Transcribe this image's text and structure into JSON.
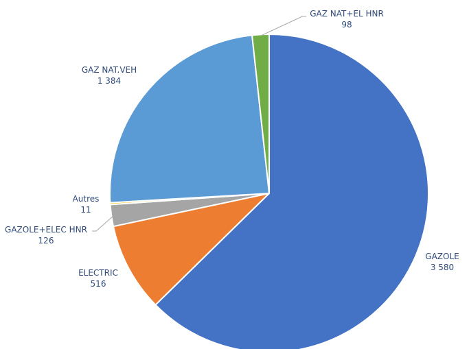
{
  "chart_data": {
    "type": "pie",
    "title": "",
    "slices": [
      {
        "label": "GAZOLE",
        "value": 3580,
        "value_label": "3 580",
        "color": "#4472C4"
      },
      {
        "label": "ELECTRIC",
        "value": 516,
        "value_label": "516",
        "color": "#ED7D31"
      },
      {
        "label": "GAZOLE+ELEC HNR",
        "value": 126,
        "value_label": "126",
        "color": "#A5A5A5"
      },
      {
        "label": "Autres",
        "value": 11,
        "value_label": "11",
        "color": "#FFC000"
      },
      {
        "label": "GAZ NAT.VEH",
        "value": 1384,
        "value_label": "1 384",
        "color": "#5B9BD5"
      },
      {
        "label": "GAZ NAT+EL HNR",
        "value": 98,
        "value_label": "98",
        "color": "#70AD47"
      }
    ],
    "start": "12 o'clock",
    "direction": "clockwise",
    "legend": "none",
    "data_labels": "outside"
  }
}
